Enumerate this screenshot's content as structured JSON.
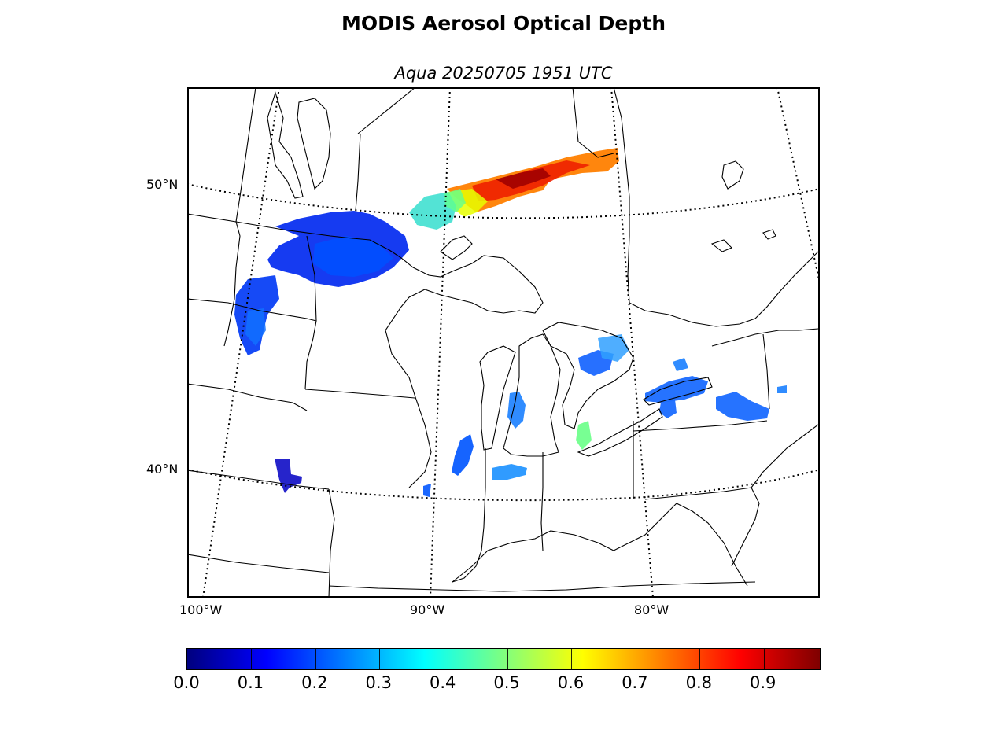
{
  "title": "MODIS Aerosol Optical Depth",
  "subtitle": "Aqua 20250705 1951 UTC",
  "map": {
    "projection": "lambert conformal",
    "region": "Great Lakes / Midwest United States and Ontario",
    "latitude_labels": [
      {
        "id": "lat-50",
        "text": "50°N"
      },
      {
        "id": "lat-40",
        "text": "40°N"
      }
    ],
    "longitude_labels": [
      {
        "id": "lon-100",
        "text": "100°W"
      },
      {
        "id": "lon-90",
        "text": "90°W"
      },
      {
        "id": "lon-80",
        "text": "80°W"
      }
    ],
    "layers": [
      {
        "name": "graticule",
        "style": "dotted black"
      },
      {
        "name": "coastlines-and-lakes",
        "style": "solid black"
      },
      {
        "name": "state-and-provincial-boundaries",
        "style": "solid black"
      },
      {
        "name": "aerosol-optical-depth-swath",
        "style": "colormap jet"
      }
    ],
    "aod_regions": [
      {
        "name": "lake-superior-low-aod",
        "aod": 0.1
      },
      {
        "name": "north-dakota-minnesota-low-aod",
        "aod": 0.12
      },
      {
        "name": "northern-ontario-swath-mid",
        "aod": 0.45
      },
      {
        "name": "northern-ontario-swath-high",
        "aod": 0.85
      },
      {
        "name": "lake-ontario-low-aod",
        "aod": 0.2
      },
      {
        "name": "lower-michigan-low-aod",
        "aod": 0.25
      },
      {
        "name": "illinois-indiana-low-aod",
        "aod": 0.2
      },
      {
        "name": "nebraska-kansas-low-aod",
        "aod": 0.05
      }
    ]
  },
  "colorbar": {
    "colormap": "jet",
    "vmin": 0.0,
    "vmax": 0.99,
    "colors": [
      "#00007f",
      "#0000ff",
      "#007fff",
      "#00ffff",
      "#7fff7f",
      "#ffff00",
      "#ff7f00",
      "#ff0000",
      "#7f0000"
    ],
    "tick_labels": [
      "0.0",
      "0.1",
      "0.2",
      "0.3",
      "0.4",
      "0.5",
      "0.6",
      "0.7",
      "0.8",
      "0.9"
    ],
    "tick_values": [
      0.0,
      0.1,
      0.2,
      0.3,
      0.4,
      0.5,
      0.6,
      0.7,
      0.8,
      0.9
    ]
  }
}
